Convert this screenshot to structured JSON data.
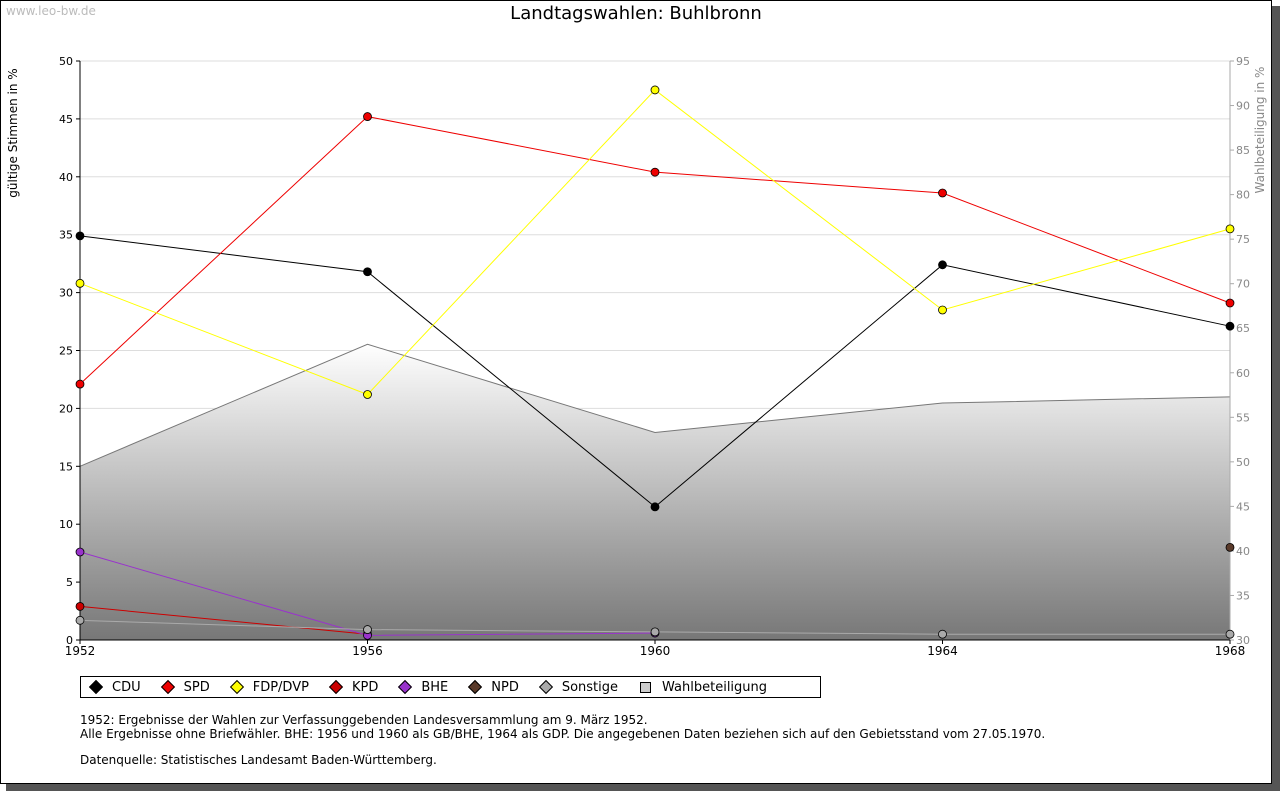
{
  "watermark": "www.leo-bw.de",
  "title": "Landtagswahlen: Buhlbronn",
  "notes": {
    "line1": "1952: Ergebnisse der Wahlen zur Verfassunggebenden Landesversammlung am 9. März 1952.",
    "line2": "Alle Ergebnisse ohne Briefwähler. BHE: 1956 und 1960 als GB/BHE, 1964 als GDP. Die angegebenen Daten beziehen sich auf den Gebietsstand vom 27.05.1970.",
    "line3": "Datenquelle: Statistisches Landesamt Baden-Württemberg."
  },
  "chart_data": {
    "type": "line",
    "title": "Landtagswahlen: Buhlbronn",
    "ylabel": "gültige Stimmen in %",
    "y2label": "Wahlbeteiligung in %",
    "x": [
      1952,
      1956,
      1960,
      1964,
      1968
    ],
    "ylim": [
      0,
      50
    ],
    "y2lim": [
      30,
      95
    ],
    "yticks": [
      0,
      5,
      10,
      15,
      20,
      25,
      30,
      35,
      40,
      45,
      50
    ],
    "y2ticks": [
      30,
      35,
      40,
      45,
      50,
      55,
      60,
      65,
      70,
      75,
      80,
      85,
      90,
      95
    ],
    "grid": true,
    "legend_position": "bottom",
    "series": [
      {
        "name": "CDU",
        "color": "#000000",
        "x": [
          1952,
          1956,
          1960,
          1964,
          1968
        ],
        "values": [
          34.9,
          31.8,
          11.5,
          32.4,
          27.1
        ]
      },
      {
        "name": "SPD",
        "color": "#ee0000",
        "x": [
          1952,
          1956,
          1960,
          1964,
          1968
        ],
        "values": [
          22.1,
          45.2,
          40.4,
          38.6,
          29.1
        ]
      },
      {
        "name": "FDP/DVP",
        "color": "#ffff00",
        "x": [
          1952,
          1956,
          1960,
          1964,
          1968
        ],
        "values": [
          30.8,
          21.2,
          47.5,
          28.5,
          35.5
        ]
      },
      {
        "name": "KPD",
        "color": "#cc0000",
        "x": [
          1952,
          1956
        ],
        "values": [
          2.9,
          0.5
        ]
      },
      {
        "name": "BHE",
        "color": "#9933cc",
        "x": [
          1952,
          1956,
          1960
        ],
        "values": [
          7.6,
          0.4,
          0.6
        ]
      },
      {
        "name": "NPD",
        "color": "#5a3a2a",
        "x": [
          1968
        ],
        "values": [
          8.0
        ]
      },
      {
        "name": "Sonstige",
        "color": "#aaaaaa",
        "x": [
          1952,
          1956,
          1960,
          1964,
          1968
        ],
        "values": [
          1.7,
          0.9,
          0.7,
          0.5,
          0.5
        ]
      }
    ],
    "turnout": {
      "name": "Wahlbeteiligung",
      "axis": "right",
      "x": [
        1952,
        1956,
        1960,
        1964,
        1968
      ],
      "values": [
        49.5,
        63.2,
        53.3,
        56.6,
        57.3
      ]
    }
  }
}
